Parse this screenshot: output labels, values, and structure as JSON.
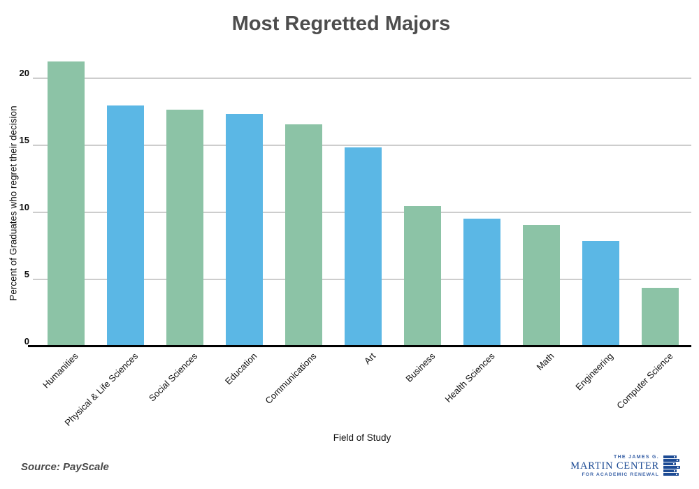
{
  "chart_data": {
    "type": "bar",
    "title": "Most Regretted Majors",
    "xlabel": "Field of Study",
    "ylabel": "Percent of Graduates who regret their decision",
    "categories": [
      "Humanities",
      "Physical & Life Sciences",
      "Social Sciences",
      "Education",
      "Communications",
      "Art",
      "Business",
      "Health Sciences",
      "Math",
      "Engineering",
      "Computer Science"
    ],
    "values": [
      21.2,
      17.9,
      17.6,
      17.3,
      16.5,
      14.8,
      10.4,
      9.5,
      9.0,
      7.8,
      4.3
    ],
    "bar_colors": [
      "#8CC3A6",
      "#5BB7E5",
      "#8CC3A6",
      "#5BB7E5",
      "#8CC3A6",
      "#5BB7E5",
      "#8CC3A6",
      "#5BB7E5",
      "#8CC3A6",
      "#5BB7E5",
      "#8CC3A6"
    ],
    "yticks": [
      0,
      5,
      10,
      15,
      20
    ],
    "ylim": [
      0,
      21.8
    ],
    "grid": true,
    "legend": "none",
    "gridline_color": "#cdcdcd",
    "axis_color": "#000000"
  },
  "source_note": "Source: PayScale",
  "logo": {
    "line1": "THE JAMES G.",
    "line2": "MARTIN CENTER",
    "line3": "FOR ACADEMIC RENEWAL",
    "navy": "#1d4b94",
    "light_navy": "#3a62a7"
  },
  "colors": {
    "title": "#4d4d4d",
    "green_bar": "#8CC3A6",
    "blue_bar": "#5BB7E5"
  }
}
